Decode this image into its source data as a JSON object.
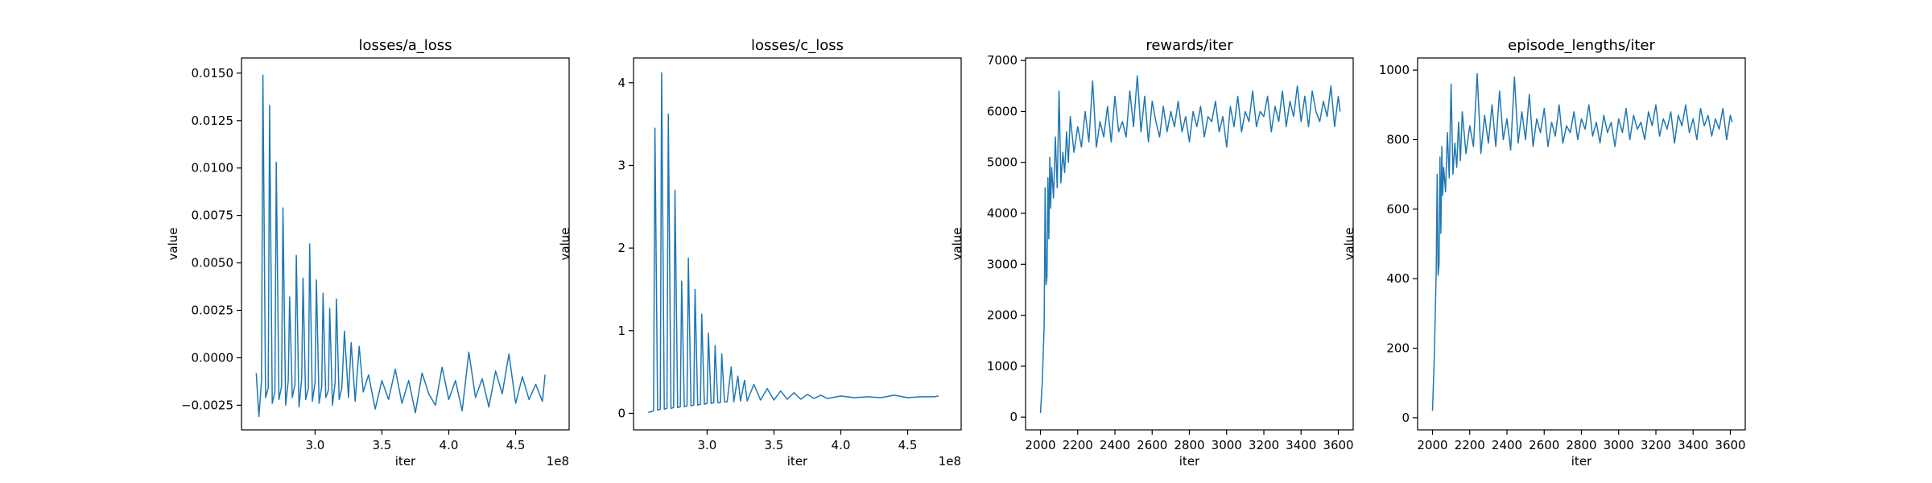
{
  "chart_data": [
    {
      "type": "line",
      "title": "losses/a_loss",
      "xlabel": "iter",
      "ylabel": "value",
      "xlim": [
        245000000,
        490000000
      ],
      "ylim": [
        -0.0038,
        0.0158
      ],
      "x_ticks": [
        300000000,
        350000000,
        400000000,
        450000000
      ],
      "x_tick_labels": [
        "3.0",
        "3.5",
        "4.0",
        "4.5"
      ],
      "x_offset_label": "1e8",
      "y_ticks": [
        -0.0025,
        0.0,
        0.0025,
        0.005,
        0.0075,
        0.01,
        0.0125,
        0.015
      ],
      "y_tick_labels": [
        "−0.0025",
        "0.0000",
        "0.0025",
        "0.0050",
        "0.0075",
        "0.0100",
        "0.0125",
        "0.0150"
      ],
      "grid": false,
      "color": "#1f77b4",
      "series": [
        {
          "x": [
            256000000,
            258000000,
            260000000,
            261000000,
            263000000,
            265000000,
            266000000,
            268000000,
            270000000,
            271000000,
            273000000,
            275000000,
            276000000,
            278000000,
            280000000,
            281000000,
            283000000,
            285000000,
            286000000,
            288000000,
            290000000,
            291000000,
            293000000,
            295000000,
            296000000,
            298000000,
            300000000,
            301000000,
            303000000,
            305000000,
            306000000,
            308000000,
            310000000,
            311000000,
            313000000,
            315000000,
            316000000,
            318000000,
            320000000,
            322000000,
            325000000,
            327000000,
            330000000,
            333000000,
            336000000,
            340000000,
            345000000,
            350000000,
            355000000,
            360000000,
            365000000,
            370000000,
            375000000,
            380000000,
            385000000,
            390000000,
            395000000,
            400000000,
            405000000,
            410000000,
            415000000,
            420000000,
            425000000,
            430000000,
            435000000,
            440000000,
            445000000,
            450000000,
            455000000,
            460000000,
            465000000,
            470000000,
            472000000
          ],
          "y": [
            -0.0008,
            -0.0031,
            -0.0012,
            0.0149,
            -0.0021,
            -0.0016,
            0.0133,
            -0.0024,
            -0.0018,
            0.0103,
            -0.0022,
            -0.0015,
            0.0079,
            -0.0025,
            -0.0012,
            0.0032,
            -0.0021,
            -0.0014,
            0.0054,
            -0.0026,
            -0.0011,
            0.0042,
            -0.0022,
            -0.0016,
            0.006,
            -0.0023,
            -0.0013,
            0.0041,
            -0.0024,
            -0.0015,
            0.0034,
            -0.0021,
            -0.0017,
            0.0026,
            -0.0025,
            -0.0013,
            0.0031,
            -0.0022,
            -0.0016,
            0.0014,
            -0.0021,
            0.0008,
            -0.0023,
            0.0006,
            -0.0018,
            -0.0009,
            -0.0027,
            -0.0012,
            -0.0022,
            -0.0006,
            -0.0024,
            -0.0012,
            -0.0029,
            -0.0008,
            -0.0019,
            -0.0025,
            -0.0005,
            -0.0022,
            -0.0012,
            -0.0028,
            0.0003,
            -0.0021,
            -0.0011,
            -0.0026,
            -0.0007,
            -0.0019,
            0.0002,
            -0.0024,
            -0.001,
            -0.0022,
            -0.0014,
            -0.0023,
            -0.0009
          ]
        }
      ]
    },
    {
      "type": "line",
      "title": "losses/c_loss",
      "xlabel": "iter",
      "ylabel": "value",
      "xlim": [
        245000000,
        490000000
      ],
      "ylim": [
        -0.2,
        4.3
      ],
      "x_ticks": [
        300000000,
        350000000,
        400000000,
        450000000
      ],
      "x_tick_labels": [
        "3.0",
        "3.5",
        "4.0",
        "4.5"
      ],
      "x_offset_label": "1e8",
      "y_ticks": [
        0,
        1,
        2,
        3,
        4
      ],
      "y_tick_labels": [
        "0",
        "1",
        "2",
        "3",
        "4"
      ],
      "grid": false,
      "color": "#1f77b4",
      "series": [
        {
          "x": [
            256000000,
            258000000,
            260000000,
            261000000,
            263000000,
            265000000,
            266000000,
            268000000,
            270000000,
            271000000,
            273000000,
            275000000,
            276000000,
            278000000,
            280000000,
            281000000,
            283000000,
            285000000,
            286000000,
            288000000,
            290000000,
            291000000,
            293000000,
            295000000,
            296000000,
            298000000,
            300000000,
            301000000,
            303000000,
            305000000,
            306000000,
            308000000,
            310000000,
            311000000,
            313000000,
            315000000,
            318000000,
            320000000,
            323000000,
            325000000,
            328000000,
            330000000,
            335000000,
            340000000,
            345000000,
            350000000,
            355000000,
            360000000,
            365000000,
            370000000,
            375000000,
            380000000,
            385000000,
            390000000,
            400000000,
            410000000,
            420000000,
            430000000,
            440000000,
            450000000,
            460000000,
            470000000,
            473000000
          ],
          "y": [
            0.01,
            0.02,
            0.03,
            3.45,
            0.04,
            0.05,
            4.12,
            0.05,
            0.06,
            3.62,
            0.06,
            0.07,
            2.7,
            0.07,
            0.08,
            1.6,
            0.08,
            0.09,
            1.88,
            0.09,
            0.1,
            1.5,
            0.1,
            0.11,
            1.2,
            0.11,
            0.12,
            0.97,
            0.12,
            0.13,
            0.82,
            0.13,
            0.13,
            0.72,
            0.14,
            0.14,
            0.56,
            0.14,
            0.45,
            0.15,
            0.4,
            0.15,
            0.35,
            0.16,
            0.3,
            0.16,
            0.27,
            0.17,
            0.25,
            0.17,
            0.23,
            0.18,
            0.22,
            0.18,
            0.21,
            0.19,
            0.2,
            0.19,
            0.22,
            0.19,
            0.2,
            0.2,
            0.21
          ]
        }
      ]
    },
    {
      "type": "line",
      "title": "rewards/iter",
      "xlabel": "iter",
      "ylabel": "value",
      "xlim": [
        1920,
        3680
      ],
      "ylim": [
        -250,
        7050
      ],
      "x_ticks": [
        2000,
        2200,
        2400,
        2600,
        2800,
        3000,
        3200,
        3400,
        3600
      ],
      "x_tick_labels": [
        "2000",
        "2200",
        "2400",
        "2600",
        "2800",
        "3000",
        "3200",
        "3400",
        "3600"
      ],
      "y_ticks": [
        0,
        1000,
        2000,
        3000,
        4000,
        5000,
        6000,
        7000
      ],
      "y_tick_labels": [
        "0",
        "1000",
        "2000",
        "3000",
        "4000",
        "5000",
        "6000",
        "7000"
      ],
      "grid": false,
      "color": "#1f77b4",
      "series": [
        {
          "x": [
            2000,
            2010,
            2020,
            2025,
            2030,
            2035,
            2040,
            2045,
            2050,
            2055,
            2060,
            2070,
            2080,
            2090,
            2100,
            2110,
            2120,
            2130,
            2140,
            2150,
            2160,
            2180,
            2200,
            2220,
            2240,
            2260,
            2280,
            2300,
            2320,
            2340,
            2360,
            2380,
            2400,
            2420,
            2440,
            2460,
            2480,
            2500,
            2520,
            2540,
            2560,
            2580,
            2600,
            2620,
            2640,
            2660,
            2680,
            2700,
            2720,
            2740,
            2760,
            2780,
            2800,
            2820,
            2840,
            2860,
            2880,
            2900,
            2920,
            2940,
            2960,
            2980,
            3000,
            3020,
            3040,
            3060,
            3080,
            3100,
            3120,
            3140,
            3160,
            3180,
            3200,
            3220,
            3240,
            3260,
            3280,
            3300,
            3320,
            3340,
            3360,
            3380,
            3400,
            3420,
            3440,
            3460,
            3480,
            3500,
            3520,
            3540,
            3560,
            3580,
            3600,
            3610
          ],
          "y": [
            80,
            700,
            1800,
            4500,
            2600,
            2750,
            4700,
            3500,
            5100,
            4100,
            4900,
            4300,
            5500,
            4500,
            6400,
            4600,
            5200,
            4800,
            5600,
            5000,
            5900,
            5200,
            5700,
            5300,
            6000,
            5400,
            6600,
            5300,
            5800,
            5500,
            6100,
            5400,
            6300,
            5600,
            5800,
            5500,
            6400,
            5700,
            6700,
            5600,
            6300,
            5400,
            6200,
            5800,
            5500,
            6100,
            5600,
            6000,
            5700,
            6200,
            5600,
            5900,
            5400,
            6000,
            5700,
            6100,
            5500,
            5900,
            5800,
            6200,
            5600,
            5900,
            5300,
            6100,
            5700,
            6300,
            5600,
            6000,
            5800,
            6400,
            5700,
            6000,
            5900,
            6300,
            5600,
            6100,
            5800,
            6400,
            5700,
            6200,
            5900,
            6500,
            5800,
            6300,
            5700,
            6400,
            6000,
            5800,
            6200,
            5900,
            6500,
            5700,
            6300,
            6000
          ]
        }
      ]
    },
    {
      "type": "line",
      "title": "episode_lengths/iter",
      "xlabel": "iter",
      "ylabel": "value",
      "xlim": [
        1920,
        3680
      ],
      "ylim": [
        -35,
        1035
      ],
      "x_ticks": [
        2000,
        2200,
        2400,
        2600,
        2800,
        3000,
        3200,
        3400,
        3600
      ],
      "x_tick_labels": [
        "2000",
        "2200",
        "2400",
        "2600",
        "2800",
        "3000",
        "3200",
        "3400",
        "3600"
      ],
      "y_ticks": [
        0,
        200,
        400,
        600,
        800,
        1000
      ],
      "y_tick_labels": [
        "0",
        "200",
        "400",
        "600",
        "800",
        "1000"
      ],
      "grid": false,
      "color": "#1f77b4",
      "series": [
        {
          "x": [
            2000,
            2010,
            2020,
            2025,
            2030,
            2035,
            2040,
            2045,
            2050,
            2055,
            2060,
            2070,
            2080,
            2090,
            2100,
            2110,
            2120,
            2130,
            2140,
            2150,
            2160,
            2180,
            2200,
            2220,
            2240,
            2260,
            2280,
            2300,
            2320,
            2340,
            2360,
            2380,
            2400,
            2420,
            2440,
            2460,
            2480,
            2500,
            2520,
            2540,
            2560,
            2580,
            2600,
            2620,
            2640,
            2660,
            2680,
            2700,
            2720,
            2740,
            2760,
            2780,
            2800,
            2820,
            2840,
            2860,
            2880,
            2900,
            2920,
            2940,
            2960,
            2980,
            3000,
            3020,
            3040,
            3060,
            3080,
            3100,
            3120,
            3140,
            3160,
            3180,
            3200,
            3220,
            3240,
            3260,
            3280,
            3300,
            3320,
            3340,
            3360,
            3380,
            3400,
            3420,
            3440,
            3460,
            3480,
            3500,
            3520,
            3540,
            3560,
            3580,
            3600,
            3610
          ],
          "y": [
            20,
            180,
            420,
            700,
            410,
            440,
            750,
            530,
            780,
            640,
            720,
            650,
            820,
            690,
            960,
            700,
            790,
            720,
            850,
            740,
            880,
            760,
            840,
            780,
            990,
            760,
            870,
            790,
            900,
            780,
            940,
            800,
            860,
            770,
            980,
            790,
            880,
            800,
            930,
            780,
            860,
            820,
            890,
            780,
            850,
            810,
            900,
            790,
            840,
            820,
            880,
            800,
            860,
            830,
            900,
            810,
            850,
            790,
            870,
            820,
            850,
            780,
            860,
            820,
            890,
            800,
            870,
            830,
            850,
            800,
            880,
            840,
            900,
            810,
            860,
            830,
            880,
            790,
            870,
            840,
            900,
            820,
            860,
            800,
            890,
            840,
            870,
            810,
            860,
            830,
            890,
            800,
            870,
            850
          ]
        }
      ]
    }
  ]
}
